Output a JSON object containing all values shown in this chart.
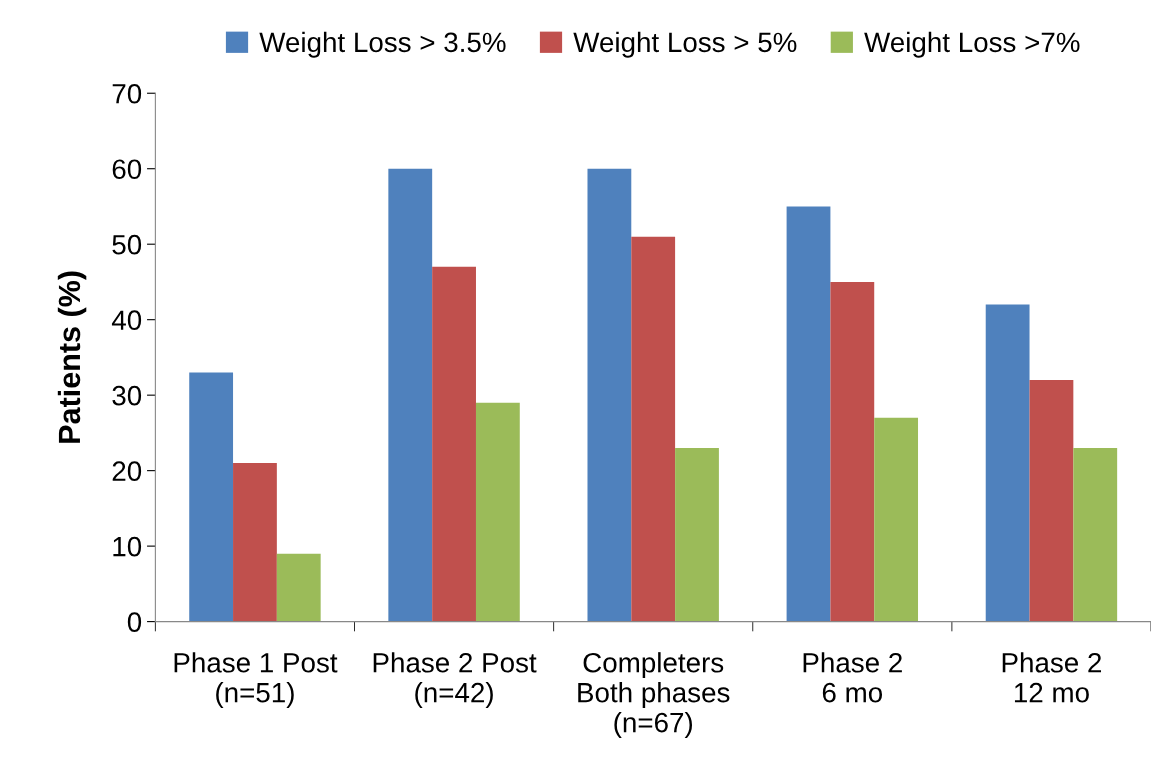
{
  "chart_data": {
    "type": "bar",
    "ylabel": "Patients (%)",
    "categories": [
      "Phase 1 Post\n(n=51)",
      "Phase 2 Post\n(n=42)",
      "Completers\nBoth phases\n(n=67)",
      "Phase 2\n6 mo",
      "Phase 2\n12 mo"
    ],
    "series": [
      {
        "name": "Weight Loss > 3.5%",
        "color": "#4f81bd",
        "values": [
          33,
          60,
          60,
          55,
          42
        ]
      },
      {
        "name": "Weight Loss > 5%",
        "color": "#c0504d",
        "values": [
          21,
          47,
          51,
          45,
          32
        ]
      },
      {
        "name": "Weight Loss >7%",
        "color": "#9bbb59",
        "values": [
          9,
          29,
          23,
          27,
          23
        ]
      }
    ],
    "ylim": [
      0,
      70
    ],
    "yticks": [
      0,
      10,
      20,
      30,
      40,
      50,
      60,
      70
    ],
    "grid": false,
    "legend": "top"
  }
}
